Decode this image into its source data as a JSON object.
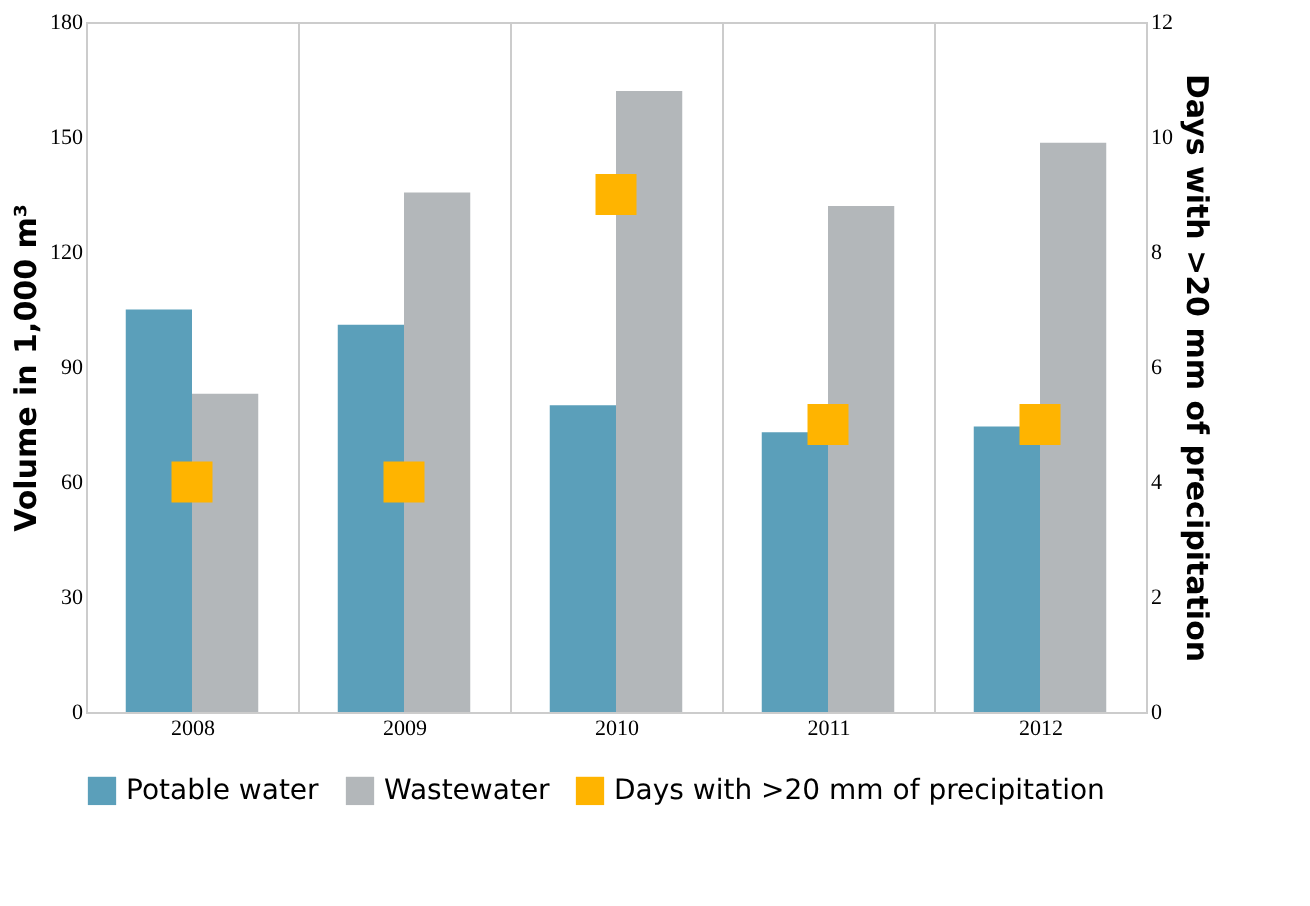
{
  "chart_data": {
    "type": "bar",
    "categories": [
      "2008",
      "2009",
      "2010",
      "2011",
      "2012"
    ],
    "ylabel": "Volume in 1,000 m³",
    "y2label": "Days with >20 mm of precipitation",
    "ylim": [
      0,
      180
    ],
    "yticks": [
      0,
      30,
      60,
      90,
      120,
      150,
      180
    ],
    "y2lim": [
      0,
      12
    ],
    "y2ticks": [
      0,
      2,
      4,
      6,
      8,
      10,
      12
    ],
    "grid": "x",
    "legend": "bottom",
    "marker": "square",
    "series": [
      {
        "name": "Potable water",
        "color": "#5b9fba",
        "values": [
          105,
          101,
          80,
          73,
          74.5
        ]
      },
      {
        "name": "Wastewater",
        "color": "#b3b7ba",
        "values": [
          83,
          135.5,
          162,
          132,
          148.5
        ]
      },
      {
        "name": "Days with >20 mm of precipitation",
        "color": "#ffb400",
        "type": "scatter",
        "axis": "y2",
        "values": [
          4,
          4,
          9,
          5,
          5
        ]
      }
    ]
  }
}
